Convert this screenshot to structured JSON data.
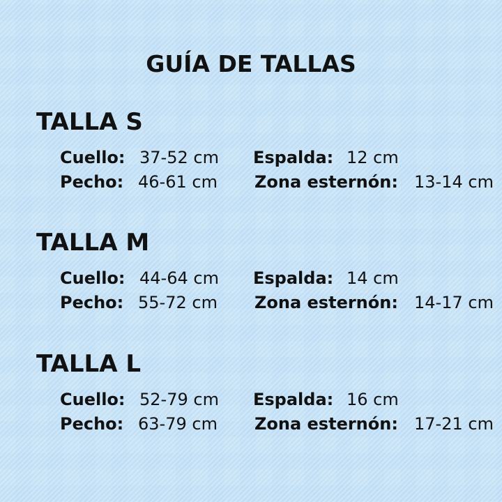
{
  "title": "GUÍA DE TALLAS",
  "sizes": [
    {
      "name": "TALLA S",
      "cuello_label": "Cuello:",
      "cuello": "37-52 cm",
      "pecho_label": "Pecho:",
      "pecho": "46-61 cm",
      "espalda_label": "Espalda:",
      "espalda": "12 cm",
      "zona_label": "Zona esternón:",
      "zona": "13-14 cm"
    },
    {
      "name": "TALLA M",
      "cuello_label": "Cuello:",
      "cuello": "44-64 cm",
      "pecho_label": "Pecho:",
      "pecho": "55-72 cm",
      "espalda_label": "Espalda:",
      "espalda": "14 cm",
      "zona_label": "Zona esternón:",
      "zona": "14-17 cm"
    },
    {
      "name": "TALLA L",
      "cuello_label": "Cuello:",
      "cuello": "52-79 cm",
      "pecho_label": "Pecho:",
      "pecho": "63-79 cm",
      "espalda_label": "Espalda:",
      "espalda": "16 cm",
      "zona_label": "Zona esternón:",
      "zona": "17-21 cm"
    }
  ],
  "colors": {
    "gingham": "#c6e2f6",
    "text": "#111111"
  }
}
